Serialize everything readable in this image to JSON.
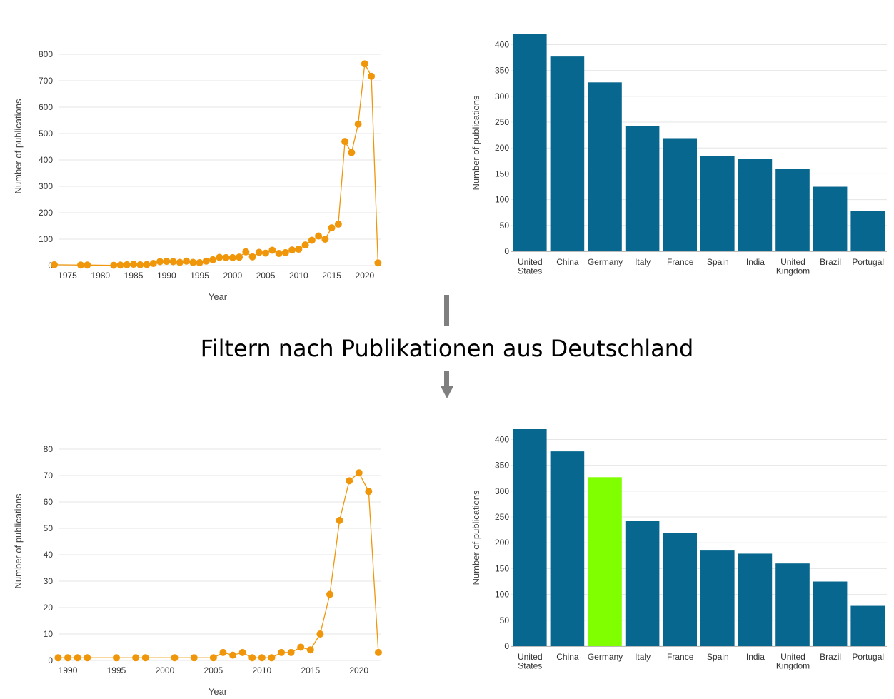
{
  "caption": "Filtern nach Publikationen aus Deutschland",
  "colors": {
    "line": "#f0960a",
    "bar": "#07678f",
    "highlight": "#7fff00",
    "grid": "#e6e6e6"
  },
  "chart_data": [
    {
      "type": "scatter",
      "xlabel": "Year",
      "ylabel": "Number of publications",
      "xlim": [
        1973,
        2022.5
      ],
      "ylim": [
        0,
        800
      ],
      "xticks": [
        1975,
        1980,
        1985,
        1990,
        1995,
        2000,
        2005,
        2010,
        2015,
        2020
      ],
      "yticks": [
        0,
        100,
        200,
        300,
        400,
        500,
        600,
        700,
        800
      ],
      "points": [
        [
          1973,
          3
        ],
        [
          1977,
          2
        ],
        [
          1978,
          2
        ],
        [
          1982,
          1
        ],
        [
          1983,
          2
        ],
        [
          1984,
          3
        ],
        [
          1985,
          5
        ],
        [
          1986,
          3
        ],
        [
          1987,
          4
        ],
        [
          1988,
          8
        ],
        [
          1989,
          15
        ],
        [
          1990,
          16
        ],
        [
          1991,
          15
        ],
        [
          1992,
          12
        ],
        [
          1993,
          17
        ],
        [
          1994,
          12
        ],
        [
          1995,
          11
        ],
        [
          1996,
          17
        ],
        [
          1997,
          22
        ],
        [
          1998,
          31
        ],
        [
          1999,
          30
        ],
        [
          2000,
          30
        ],
        [
          2001,
          32
        ],
        [
          2002,
          52
        ],
        [
          2003,
          33
        ],
        [
          2004,
          50
        ],
        [
          2005,
          47
        ],
        [
          2006,
          58
        ],
        [
          2007,
          46
        ],
        [
          2008,
          49
        ],
        [
          2009,
          59
        ],
        [
          2010,
          62
        ],
        [
          2011,
          78
        ],
        [
          2012,
          96
        ],
        [
          2013,
          112
        ],
        [
          2014,
          100
        ],
        [
          2015,
          143
        ],
        [
          2016,
          157
        ],
        [
          2017,
          470
        ],
        [
          2018,
          428
        ],
        [
          2019,
          536
        ],
        [
          2020,
          764
        ],
        [
          2021,
          717
        ],
        [
          2022,
          10
        ]
      ]
    },
    {
      "type": "bar",
      "ylabel": "Number of publications",
      "ylim": [
        0,
        420
      ],
      "yticks": [
        0,
        50,
        100,
        150,
        200,
        250,
        300,
        350,
        400
      ],
      "categories": [
        "United States",
        "China",
        "Germany",
        "Italy",
        "France",
        "Spain",
        "India",
        "United Kingdom",
        "Brazil",
        "Portugal"
      ],
      "category_lines": [
        [
          "United",
          "States"
        ],
        [
          "China"
        ],
        [
          "Germany"
        ],
        [
          "Italy"
        ],
        [
          "France"
        ],
        [
          "Spain"
        ],
        [
          "India"
        ],
        [
          "United",
          "Kingdom"
        ],
        [
          "Brazil"
        ],
        [
          "Portugal"
        ]
      ],
      "values": [
        420,
        377,
        327,
        242,
        219,
        184,
        179,
        160,
        125,
        78
      ],
      "highlight_index": -1
    },
    {
      "type": "scatter",
      "xlabel": "Year",
      "ylabel": "Number of publications",
      "xlim": [
        1988.6,
        2022.3
      ],
      "ylim": [
        0,
        80
      ],
      "xticks": [
        1990,
        1995,
        2000,
        2005,
        2010,
        2015,
        2020
      ],
      "yticks": [
        0,
        10,
        20,
        30,
        40,
        50,
        60,
        70,
        80
      ],
      "points": [
        [
          1989,
          1
        ],
        [
          1990,
          1
        ],
        [
          1991,
          1
        ],
        [
          1992,
          1
        ],
        [
          1995,
          1
        ],
        [
          1997,
          1
        ],
        [
          1998,
          1
        ],
        [
          2001,
          1
        ],
        [
          2003,
          1
        ],
        [
          2005,
          1
        ],
        [
          2006,
          3
        ],
        [
          2007,
          2
        ],
        [
          2008,
          3
        ],
        [
          2009,
          1
        ],
        [
          2010,
          1
        ],
        [
          2011,
          1
        ],
        [
          2012,
          3
        ],
        [
          2013,
          3
        ],
        [
          2014,
          5
        ],
        [
          2015,
          4
        ],
        [
          2016,
          10
        ],
        [
          2017,
          25
        ],
        [
          2018,
          53
        ],
        [
          2019,
          68
        ],
        [
          2020,
          71
        ],
        [
          2021,
          64
        ],
        [
          2022,
          3
        ]
      ]
    },
    {
      "type": "bar",
      "ylabel": "Number of publications",
      "ylim": [
        0,
        420
      ],
      "yticks": [
        0,
        50,
        100,
        150,
        200,
        250,
        300,
        350,
        400
      ],
      "categories": [
        "United States",
        "China",
        "Germany",
        "Italy",
        "France",
        "Spain",
        "India",
        "United Kingdom",
        "Brazil",
        "Portugal"
      ],
      "category_lines": [
        [
          "United",
          "States"
        ],
        [
          "China"
        ],
        [
          "Germany"
        ],
        [
          "Italy"
        ],
        [
          "France"
        ],
        [
          "Spain"
        ],
        [
          "India"
        ],
        [
          "United",
          "Kingdom"
        ],
        [
          "Brazil"
        ],
        [
          "Portugal"
        ]
      ],
      "values": [
        420,
        377,
        327,
        242,
        219,
        185,
        179,
        160,
        125,
        78
      ],
      "highlight_index": 2
    }
  ]
}
